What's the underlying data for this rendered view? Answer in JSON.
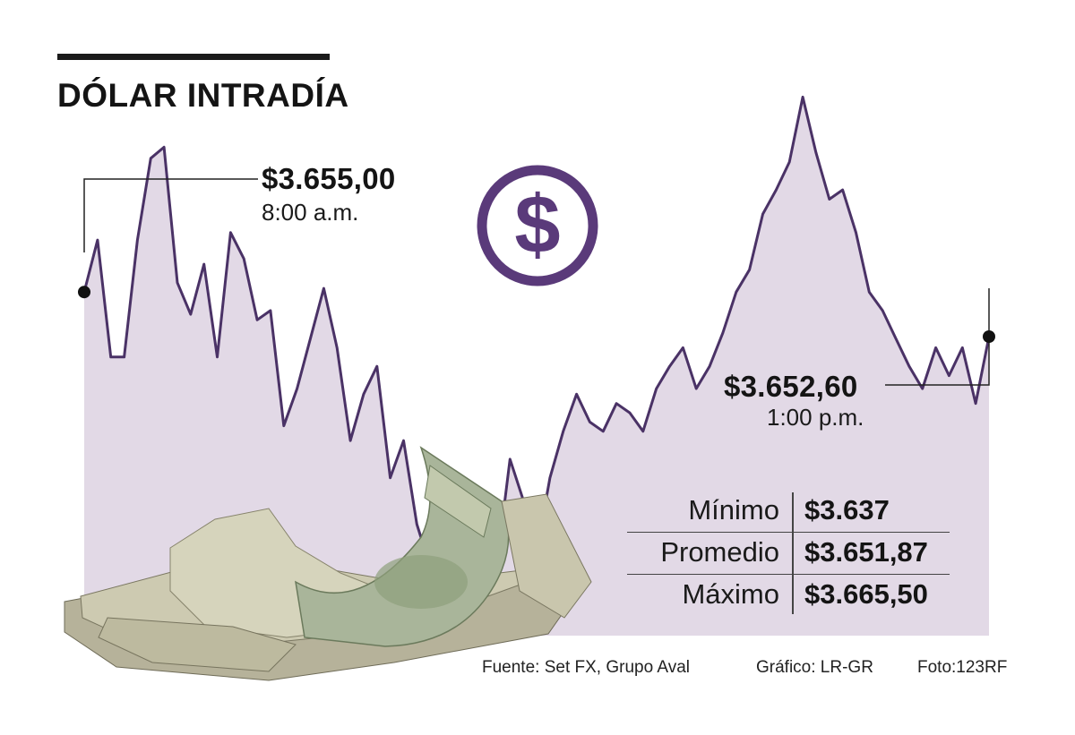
{
  "title": "DÓLAR INTRADÍA",
  "open": {
    "value": "$3.655,00",
    "time": "8:00 a.m."
  },
  "close": {
    "value": "$3.652,60",
    "time": "1:00 p.m."
  },
  "stats": [
    {
      "label": "Mínimo",
      "value": "$3.637"
    },
    {
      "label": "Promedio",
      "value": "$3.651,87"
    },
    {
      "label": "Máximo",
      "value": "$3.665,50"
    }
  ],
  "footer": {
    "source": "Fuente: Set FX, Grupo Aval",
    "chart_credit": "Gráfico: LR-GR",
    "photo_credit": "Foto:123RF"
  },
  "colors": {
    "line": "#4a3266",
    "area": "#e2d9e6",
    "badge": "#5a3a7a"
  },
  "icons": [
    "dollar-coin-icon",
    "banknotes-photo"
  ],
  "chart_data": {
    "type": "area",
    "title": "DÓLAR INTRADÍA",
    "xlabel": "",
    "ylabel": "",
    "x_start": "8:00 a.m.",
    "x_end": "1:00 p.m.",
    "ylim": [
      3636.5,
      3666
    ],
    "grid": false,
    "series": [
      {
        "values": [
          3655.0,
          3657.8,
          3651.5,
          3651.5,
          3657.8,
          3662.2,
          3662.8,
          3655.5,
          3653.8,
          3656.5,
          3651.5,
          3658.2,
          3656.8,
          3653.5,
          3654.0,
          3647.8,
          3649.8,
          3652.5,
          3655.2,
          3652.0,
          3647.0,
          3649.5,
          3651.0,
          3645.0,
          3647.0,
          3642.5,
          3640.2,
          3642.2,
          3637.0,
          3643.0,
          3643.0,
          3640.2,
          3646.0,
          3643.8,
          3641.0,
          3645.0,
          3647.5,
          3649.5,
          3648.0,
          3647.5,
          3649.0,
          3648.5,
          3647.5,
          3649.8,
          3651.0,
          3652.0,
          3649.8,
          3651.0,
          3652.8,
          3655.0,
          3656.2,
          3659.2,
          3660.5,
          3662.0,
          3665.5,
          3662.5,
          3660.0,
          3660.5,
          3658.2,
          3655.0,
          3654.0,
          3652.5,
          3651.0,
          3649.8,
          3652.0,
          3650.5,
          3652.0,
          3649.0,
          3652.6
        ]
      }
    ]
  }
}
